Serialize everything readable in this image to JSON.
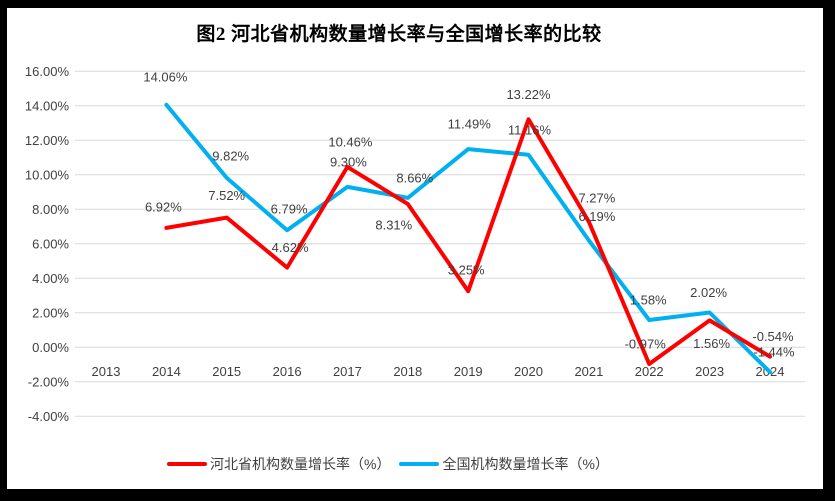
{
  "frame": {
    "background_color": "#000000",
    "canvas_color": "#FFFFFF"
  },
  "title": "图2 河北省机构数量增长率与全国增长率的比较",
  "chart_data": {
    "type": "line",
    "title": "图2 河北省机构数量增长率与全国增长率的比较",
    "categories": [
      "2013",
      "2014",
      "2015",
      "2016",
      "2017",
      "2018",
      "2019",
      "2020",
      "2021",
      "2022",
      "2023",
      "2024"
    ],
    "series": [
      {
        "id": "hebei",
        "name": "河北省机构数量增长率（%）",
        "color": "#FF0000",
        "values": [
          null,
          6.92,
          7.52,
          4.62,
          10.46,
          8.31,
          3.25,
          13.22,
          7.27,
          -0.97,
          1.56,
          -0.54
        ],
        "labels": [
          "",
          "6.92%",
          "7.52%",
          "4.62%",
          "10.46%",
          "8.31%",
          "3.25%",
          "13.22%",
          "7.27%",
          "-0.97%",
          "1.56%",
          "-0.54%"
        ]
      },
      {
        "id": "national",
        "name": "全国机构数量增长率（%）",
        "color": "#00B0F0",
        "values": [
          null,
          14.06,
          9.82,
          6.79,
          9.3,
          8.66,
          11.49,
          11.16,
          6.19,
          1.58,
          2.02,
          -1.44
        ],
        "labels": [
          "",
          "14.06%",
          "9.82%",
          "6.79%",
          "9.30%",
          "8.66%",
          "11.49%",
          "11.16%",
          "6.19%",
          "1.58%",
          "2.02%",
          "-1.44%"
        ]
      }
    ],
    "y_axis": {
      "min": -4,
      "max": 16,
      "step": 2,
      "tick_labels": [
        "16.00%",
        "14.00%",
        "12.00%",
        "10.00%",
        "8.00%",
        "6.00%",
        "4.00%",
        "2.00%",
        "0.00%",
        "-2.00%",
        "-4.00%"
      ]
    },
    "grid": true,
    "data_labels": true,
    "legend_position": "bottom",
    "colors": {
      "gridline": "#D9D9D9",
      "label_text": "#404040",
      "title_text": "#000000"
    }
  }
}
